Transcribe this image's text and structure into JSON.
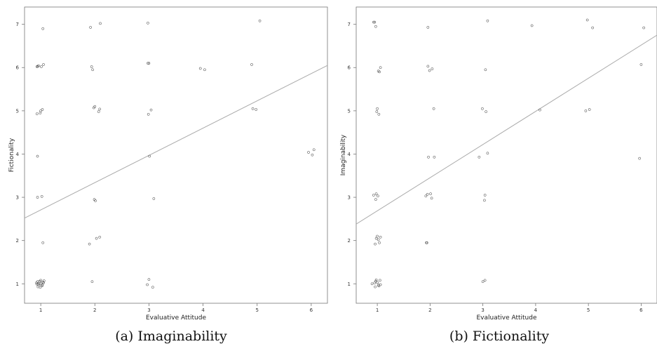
{
  "chart_data": [
    {
      "type": "scatter",
      "caption": "(a) Imaginability",
      "xlabel": "Evaluative Attitude",
      "ylabel": "Fictionality",
      "xlim": [
        0.7,
        6.3
      ],
      "ylim": [
        0.55,
        7.4
      ],
      "xticks": [
        1,
        2,
        3,
        4,
        5,
        6
      ],
      "yticks": [
        1,
        2,
        3,
        4,
        5,
        6,
        7
      ],
      "grid": false,
      "regression": {
        "x": [
          0.7,
          6.3
        ],
        "y": [
          2.52,
          6.05
        ]
      },
      "points": [
        [
          0.92,
          1.02
        ],
        [
          0.94,
          1.05
        ],
        [
          0.96,
          0.98
        ],
        [
          0.98,
          1.06
        ],
        [
          1.0,
          1.0
        ],
        [
          1.02,
          0.95
        ],
        [
          1.04,
          1.04
        ],
        [
          1.06,
          1.07
        ],
        [
          0.95,
          0.93
        ],
        [
          1.0,
          1.08
        ],
        [
          0.97,
          1.01
        ],
        [
          1.03,
          0.97
        ],
        [
          0.93,
          0.99
        ],
        [
          1.05,
          1.02
        ],
        [
          0.99,
          0.92
        ],
        [
          1.04,
          1.95
        ],
        [
          0.94,
          3.0
        ],
        [
          1.02,
          3.02
        ],
        [
          0.94,
          3.95
        ],
        [
          0.93,
          4.93
        ],
        [
          0.99,
          4.95
        ],
        [
          1.0,
          5.0
        ],
        [
          1.03,
          5.03
        ],
        [
          0.93,
          6.02
        ],
        [
          0.94,
          6.03
        ],
        [
          0.96,
          6.04
        ],
        [
          1.01,
          6.02
        ],
        [
          1.05,
          6.07
        ],
        [
          1.04,
          6.9
        ],
        [
          1.9,
          1.92
        ],
        [
          1.95,
          1.05
        ],
        [
          2.03,
          2.05
        ],
        [
          2.09,
          2.08
        ],
        [
          1.99,
          2.95
        ],
        [
          2.01,
          2.92
        ],
        [
          1.98,
          5.07
        ],
        [
          2.0,
          5.1
        ],
        [
          2.07,
          4.98
        ],
        [
          2.09,
          5.04
        ],
        [
          1.94,
          6.02
        ],
        [
          1.96,
          5.95
        ],
        [
          1.92,
          6.93
        ],
        [
          2.1,
          7.02
        ],
        [
          2.97,
          0.98
        ],
        [
          3.0,
          1.1
        ],
        [
          3.07,
          0.92
        ],
        [
          3.01,
          3.95
        ],
        [
          3.09,
          2.97
        ],
        [
          2.99,
          4.92
        ],
        [
          3.04,
          5.02
        ],
        [
          2.98,
          6.1
        ],
        [
          3.0,
          6.1
        ],
        [
          2.98,
          7.03
        ],
        [
          3.95,
          5.98
        ],
        [
          4.03,
          5.95
        ],
        [
          4.9,
          6.07
        ],
        [
          4.92,
          5.05
        ],
        [
          4.98,
          5.03
        ],
        [
          5.05,
          7.08
        ],
        [
          5.95,
          4.04
        ],
        [
          6.02,
          3.98
        ],
        [
          6.05,
          4.1
        ]
      ]
    },
    {
      "type": "scatter",
      "caption": "(b) Fictionality",
      "xlabel": "Evaluative Attitude",
      "ylabel": "Imaginability",
      "xlim": [
        0.6,
        6.3
      ],
      "ylim": [
        0.55,
        7.4
      ],
      "xticks": [
        1,
        2,
        3,
        4,
        5,
        6
      ],
      "yticks": [
        1,
        2,
        3,
        4,
        5,
        6,
        7
      ],
      "grid": false,
      "regression": {
        "x": [
          0.6,
          6.3
        ],
        "y": [
          2.38,
          6.75
        ]
      },
      "points": [
        [
          0.9,
          1.0
        ],
        [
          0.95,
          1.02
        ],
        [
          0.97,
          1.06
        ],
        [
          1.0,
          1.03
        ],
        [
          1.02,
          0.97
        ],
        [
          1.05,
          1.08
        ],
        [
          0.96,
          0.93
        ],
        [
          1.03,
          0.95
        ],
        [
          1.06,
          0.98
        ],
        [
          0.98,
          1.09
        ],
        [
          0.96,
          1.92
        ],
        [
          0.98,
          2.05
        ],
        [
          1.0,
          2.1
        ],
        [
          1.02,
          2.02
        ],
        [
          1.04,
          1.95
        ],
        [
          1.06,
          2.08
        ],
        [
          0.93,
          3.05
        ],
        [
          0.98,
          3.08
        ],
        [
          1.01,
          3.03
        ],
        [
          0.97,
          2.95
        ],
        [
          0.99,
          4.98
        ],
        [
          1.0,
          5.05
        ],
        [
          1.03,
          4.92
        ],
        [
          1.02,
          5.92
        ],
        [
          1.04,
          5.9
        ],
        [
          1.06,
          6.0
        ],
        [
          0.93,
          7.05
        ],
        [
          0.95,
          7.05
        ],
        [
          0.97,
          6.95
        ],
        [
          1.93,
          1.95
        ],
        [
          1.94,
          1.95
        ],
        [
          1.92,
          3.03
        ],
        [
          1.95,
          3.07
        ],
        [
          2.01,
          3.08
        ],
        [
          2.03,
          2.98
        ],
        [
          1.97,
          3.93
        ],
        [
          2.08,
          3.93
        ],
        [
          2.07,
          5.05
        ],
        [
          1.96,
          6.03
        ],
        [
          1.99,
          5.93
        ],
        [
          2.04,
          5.97
        ],
        [
          1.96,
          6.93
        ],
        [
          3.0,
          1.05
        ],
        [
          3.04,
          1.08
        ],
        [
          2.93,
          3.93
        ],
        [
          3.03,
          2.93
        ],
        [
          3.04,
          3.05
        ],
        [
          3.09,
          4.02
        ],
        [
          2.99,
          5.05
        ],
        [
          3.06,
          4.98
        ],
        [
          3.05,
          5.95
        ],
        [
          3.09,
          7.08
        ],
        [
          3.93,
          6.97
        ],
        [
          4.08,
          5.02
        ],
        [
          4.95,
          5.0
        ],
        [
          5.02,
          5.03
        ],
        [
          4.98,
          7.1
        ],
        [
          5.08,
          6.92
        ],
        [
          5.97,
          3.9
        ],
        [
          6.0,
          6.07
        ],
        [
          6.05,
          6.92
        ]
      ]
    }
  ]
}
